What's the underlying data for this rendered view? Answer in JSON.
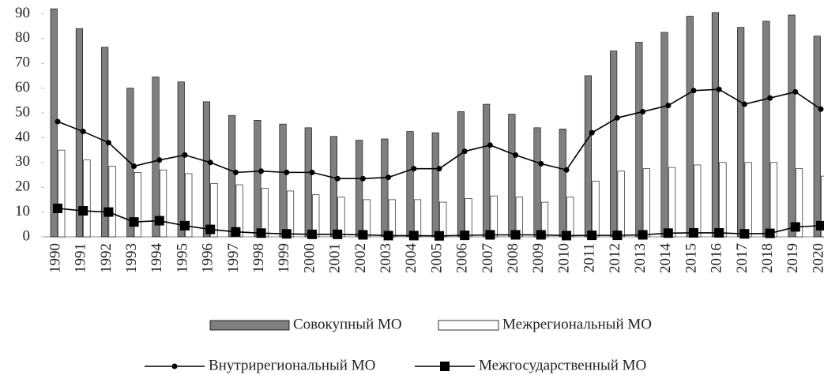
{
  "chart_data": {
    "type": "bar-line",
    "categories": [
      "1990",
      "1991",
      "1992",
      "1993",
      "1994",
      "1995",
      "1996",
      "1997",
      "1998",
      "1999",
      "2000",
      "2001",
      "2002",
      "2003",
      "2004",
      "2005",
      "2006",
      "2007",
      "2008",
      "2009",
      "2010",
      "2011",
      "2012",
      "2013",
      "2014",
      "2015",
      "2016",
      "2017",
      "2018",
      "2019",
      "2020"
    ],
    "series": [
      {
        "name": "Совокупный МО",
        "kind": "bar",
        "color": "#7f7f7f",
        "values": [
          92,
          84,
          76.5,
          60,
          64.5,
          62.5,
          54.5,
          49,
          47,
          45.5,
          44,
          40.5,
          39,
          39.5,
          42.5,
          42,
          50.5,
          53.5,
          49.5,
          44,
          43.5,
          65,
          75,
          78.5,
          82.5,
          89,
          90.5,
          84.5,
          87,
          89.5,
          81
        ]
      },
      {
        "name": "Межрегиональный МО",
        "kind": "bar",
        "color": "#ffffff",
        "values": [
          35,
          31,
          28.5,
          26,
          27,
          25.5,
          21.5,
          21,
          19.5,
          18.5,
          17,
          16,
          15,
          15,
          15,
          14,
          15.5,
          16.5,
          16,
          14,
          16,
          22.5,
          26.5,
          27.5,
          28,
          29,
          30,
          30,
          30,
          27.5,
          24.5
        ]
      },
      {
        "name": "Внутрирегиональный МО",
        "kind": "line",
        "marker": "circle",
        "color": "#000000",
        "values": [
          46.5,
          42.5,
          38,
          28.5,
          31,
          33,
          30,
          26,
          26.5,
          26,
          26,
          23.5,
          23.5,
          24,
          27.5,
          27.5,
          34.5,
          37,
          33,
          29.5,
          27,
          42,
          48,
          50.5,
          53,
          59,
          59.5,
          53.5,
          56,
          58.5,
          51.5
        ]
      },
      {
        "name": "Межгосударственный МО",
        "kind": "line",
        "marker": "square",
        "color": "#000000",
        "values": [
          11.5,
          10.5,
          10,
          6,
          6.5,
          4.5,
          3,
          2,
          1.5,
          1.2,
          1,
          1,
          0.8,
          0.5,
          0.5,
          0.4,
          0.6,
          0.8,
          0.8,
          0.8,
          0.5,
          0.6,
          0.6,
          0.8,
          1.5,
          1.6,
          1.6,
          1.2,
          1.4,
          4,
          4.5
        ]
      }
    ],
    "ylim": [
      0,
      93
    ],
    "yticks": [
      0,
      10,
      20,
      30,
      40,
      50,
      60,
      70,
      80,
      90
    ],
    "grid": false
  }
}
